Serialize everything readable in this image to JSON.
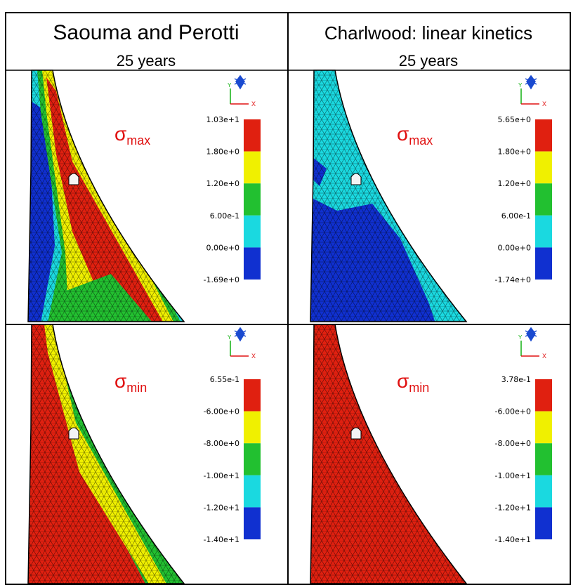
{
  "header": {
    "columns": [
      {
        "title": "Saouma and Perotti",
        "subtitle": "25 years"
      },
      {
        "title": "Charlwood: linear kinetics",
        "subtitle": "25 years"
      }
    ]
  },
  "triad_labels": [
    "Y",
    "X"
  ],
  "panels": [
    {
      "label": {
        "symbol": "σ",
        "subscript": "max"
      },
      "legend": [
        "1.03e+1",
        "1.80e+0",
        "1.20e+0",
        "6.00e-1",
        "0.00e+0",
        "-1.69e+0"
      ]
    },
    {
      "label": {
        "symbol": "σ",
        "subscript": "max"
      },
      "legend": [
        "5.65e+0",
        "1.80e+0",
        "1.20e+0",
        "6.00e-1",
        "0.00e+0",
        "-1.74e+0"
      ]
    },
    {
      "label": {
        "symbol": "σ",
        "subscript": "min"
      },
      "legend": [
        "6.55e-1",
        "-6.00e+0",
        "-8.00e+0",
        "-1.00e+1",
        "-1.20e+1",
        "-1.40e+1"
      ]
    },
    {
      "label": {
        "symbol": "σ",
        "subscript": "min"
      },
      "legend": [
        "3.78e-1",
        "-6.00e+0",
        "-8.00e+0",
        "-1.00e+1",
        "-1.20e+1",
        "-1.40e+1"
      ]
    }
  ]
}
